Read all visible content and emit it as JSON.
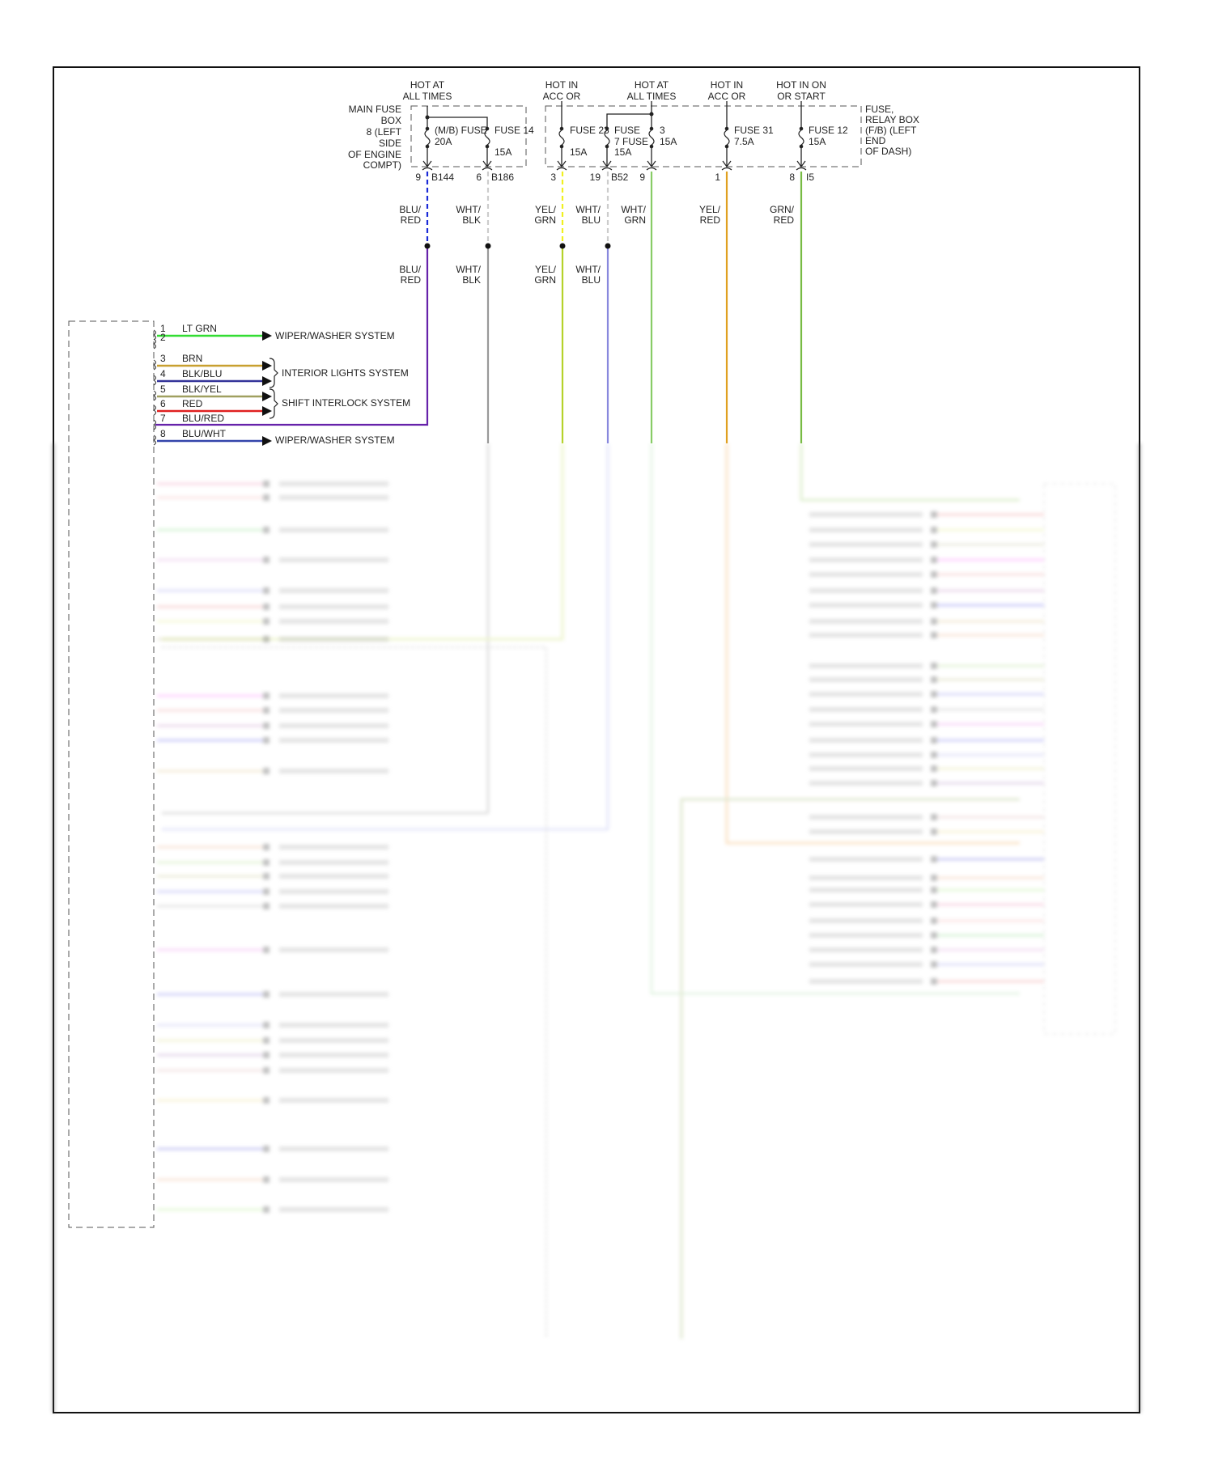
{
  "power_labels": [
    {
      "line1": "HOT AT",
      "line2": "ALL TIMES"
    },
    {
      "line1": "HOT IN",
      "line2": "ACC OR"
    },
    {
      "line1": "HOT AT",
      "line2": "ALL TIMES"
    },
    {
      "line1": "HOT IN",
      "line2": "ACC OR"
    },
    {
      "line1": "HOT IN ON",
      "line2": "OR START"
    }
  ],
  "main_fuse_box": {
    "lines": [
      "MAIN FUSE",
      "BOX",
      "8 (LEFT",
      "SIDE",
      "OF ENGINE",
      "COMPT)"
    ]
  },
  "relay_box": {
    "lines": [
      "FUSE,",
      "RELAY BOX",
      "(F/B) (LEFT",
      "END",
      "OF DASH)"
    ]
  },
  "fuses": [
    {
      "name": "(M/B) FUSE",
      "rating": "20A"
    },
    {
      "name": "FUSE 14",
      "rating": "15A"
    },
    {
      "name": "FUSE 23",
      "rating": "15A"
    },
    {
      "name": "FUSE",
      "name2": "7 FUSE",
      "rating": "15A"
    },
    {
      "name": "3",
      "rating": "15A"
    },
    {
      "name": "FUSE 31",
      "rating": "7.5A"
    },
    {
      "name": "FUSE 12",
      "rating": "15A"
    }
  ],
  "terminals": [
    {
      "pin": "9",
      "conn": "B144"
    },
    {
      "pin": "6",
      "conn": "B186"
    },
    {
      "pin": "3",
      "conn": ""
    },
    {
      "pin": "19",
      "conn": "B52"
    },
    {
      "pin": "9",
      "conn": ""
    },
    {
      "pin": "1",
      "conn": ""
    },
    {
      "pin": "8",
      "conn": "I5"
    }
  ],
  "wire_colors_upper": [
    "BLU/",
    "RED",
    "WHT/",
    "BLK",
    "YEL/",
    "GRN",
    "WHT/",
    "BLU",
    "WHT/",
    "GRN",
    "YEL/",
    "RED",
    "GRN/",
    "RED"
  ],
  "wire_colors_lower": [
    "BLU/",
    "RED",
    "WHT/",
    "BLK",
    "YEL/",
    "GRN",
    "WHT/",
    "BLU"
  ],
  "connector_pins": [
    {
      "pin": "1",
      "color": "LT GRN",
      "hex": "#33dd33"
    },
    {
      "pin": "2",
      "color": "",
      "hex": ""
    },
    {
      "pin": "3",
      "color": "BRN",
      "hex": "#c8a030"
    },
    {
      "pin": "4",
      "color": "BLK/BLU",
      "hex": "#333399"
    },
    {
      "pin": "5",
      "color": "BLK/YEL",
      "hex": "#a0a060"
    },
    {
      "pin": "6",
      "color": "RED",
      "hex": "#e02020"
    },
    {
      "pin": "7",
      "color": "BLU/RED",
      "hex": "#6622aa"
    },
    {
      "pin": "8",
      "color": "BLU/WHT",
      "hex": "#3344aa"
    }
  ],
  "destinations": {
    "wiper1": "WIPER/WASHER SYSTEM",
    "interior": "INTERIOR LIGHTS SYSTEM",
    "shift": "SHIFT INTERLOCK SYSTEM",
    "wiper2": "WIPER/WASHER SYSTEM"
  }
}
